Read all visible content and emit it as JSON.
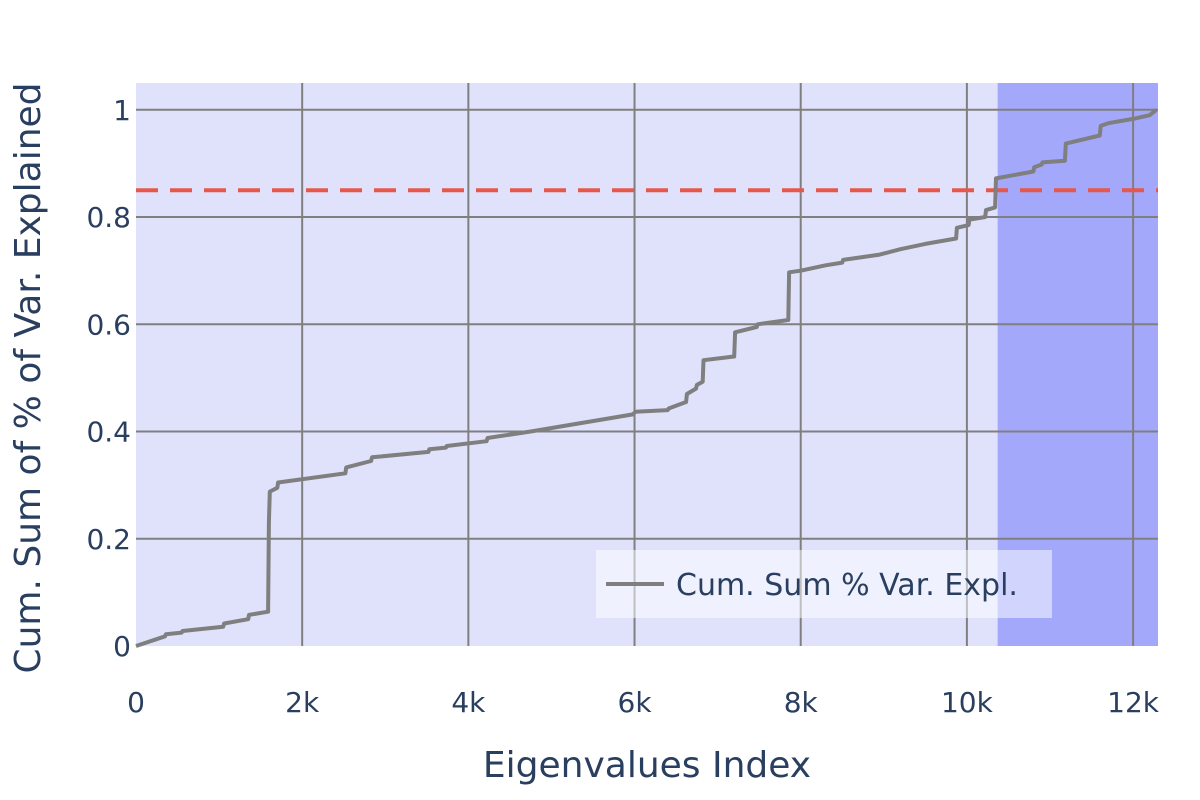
{
  "chart_data": {
    "type": "line",
    "xlabel": "Eigenvalues Index",
    "ylabel": "Cum. Sum of %  of Var. Explained",
    "xlim": [
      0,
      12300
    ],
    "ylim": [
      0,
      1.05
    ],
    "x_ticks": [
      0,
      2000,
      4000,
      6000,
      8000,
      10000,
      12000
    ],
    "x_tick_labels": [
      "0",
      "2k",
      "4k",
      "6k",
      "8k",
      "10k",
      "12k"
    ],
    "y_ticks": [
      0,
      0.2,
      0.4,
      0.6,
      0.8,
      1
    ],
    "y_tick_labels": [
      "0",
      "0.2",
      "0.4",
      "0.6",
      "0.8",
      "1"
    ],
    "grid": true,
    "legend_position": "bottom-right",
    "threshold": {
      "y": 0.85,
      "color": "#e8574a",
      "style": "dashed"
    },
    "highlight_region": {
      "x_start": 10370,
      "x_end": 12300,
      "color": "#a3a8fa"
    },
    "plot_background": "#e0e2fc",
    "series": [
      {
        "name": "Cum. Sum % Var. Expl.",
        "color": "#7f7f7f",
        "x": [
          0,
          350,
          360,
          550,
          560,
          1050,
          1060,
          1350,
          1360,
          1590,
          1600,
          1610,
          1700,
          1710,
          2520,
          2530,
          2830,
          2840,
          3520,
          3530,
          3730,
          3740,
          4220,
          4230,
          4750,
          5980,
          6010,
          6400,
          6410,
          6620,
          6630,
          6740,
          6750,
          6820,
          6830,
          7200,
          7210,
          7470,
          7480,
          7850,
          7860,
          8000,
          8300,
          8500,
          8510,
          8950,
          9200,
          9500,
          9870,
          9880,
          10020,
          10030,
          10220,
          10230,
          10340,
          10350,
          10800,
          10810,
          10900,
          10910,
          11180,
          11190,
          11600,
          11610,
          11700,
          12000,
          12200,
          12280
        ],
        "y": [
          0,
          0.018,
          0.022,
          0.025,
          0.028,
          0.036,
          0.042,
          0.05,
          0.058,
          0.064,
          0.23,
          0.288,
          0.295,
          0.305,
          0.322,
          0.333,
          0.345,
          0.352,
          0.362,
          0.367,
          0.37,
          0.373,
          0.382,
          0.388,
          0.4,
          0.432,
          0.437,
          0.44,
          0.443,
          0.455,
          0.47,
          0.48,
          0.487,
          0.493,
          0.533,
          0.54,
          0.585,
          0.595,
          0.6,
          0.608,
          0.697,
          0.7,
          0.71,
          0.715,
          0.72,
          0.73,
          0.74,
          0.75,
          0.76,
          0.78,
          0.785,
          0.795,
          0.8,
          0.813,
          0.818,
          0.872,
          0.885,
          0.893,
          0.898,
          0.902,
          0.905,
          0.937,
          0.952,
          0.97,
          0.975,
          0.983,
          0.99,
          1.0
        ]
      }
    ]
  }
}
